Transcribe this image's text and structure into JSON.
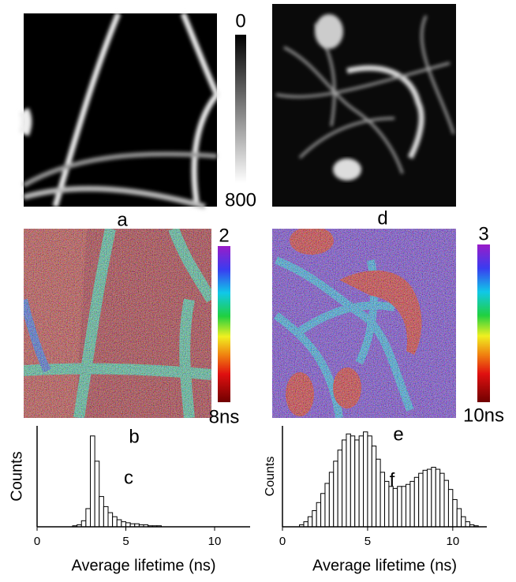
{
  "panel_labels": [
    "a",
    "d",
    "b",
    "e"
  ],
  "colorbars": [
    {
      "top": "0",
      "bottom": "800"
    },
    {
      "top": "2",
      "bottom": "8ns"
    },
    {
      "top": "3",
      "bottom": "10ns"
    }
  ],
  "chart_data": [
    {
      "type": "histogram",
      "annotation": "c",
      "xlabel": "Average lifetime (ns)",
      "ylabel": "Counts",
      "color": "#ffffff",
      "bins": [
        1.75,
        2.0,
        2.25,
        2.5,
        2.75,
        3.0,
        3.25,
        3.5,
        3.75,
        4.0,
        4.25,
        4.5,
        4.75,
        5.0,
        5.25,
        5.5,
        5.75,
        6.0,
        6.25,
        6.5,
        6.75,
        7.0,
        7.25
      ],
      "counts": [
        0,
        1,
        2,
        6,
        18,
        90,
        65,
        30,
        20,
        14,
        10,
        7,
        5,
        4,
        3,
        3,
        2,
        2,
        1,
        1,
        1,
        0
      ],
      "xlim": [
        0,
        12
      ],
      "ylim": [
        0,
        100
      ],
      "xticks": [
        0,
        5,
        10
      ]
    },
    {
      "type": "histogram",
      "annotation": "f",
      "xlabel": "Average lifetime (ns)",
      "ylabel": "Counts",
      "color": "#ffffff",
      "bins": [
        1.0,
        1.25,
        1.5,
        1.75,
        2.0,
        2.25,
        2.5,
        2.75,
        3.0,
        3.25,
        3.5,
        3.75,
        4.0,
        4.25,
        4.5,
        4.75,
        5.0,
        5.25,
        5.5,
        5.75,
        6.0,
        6.25,
        6.5,
        6.75,
        7.0,
        7.25,
        7.5,
        7.75,
        8.0,
        8.25,
        8.5,
        8.75,
        9.0,
        9.25,
        9.5,
        9.75,
        10.0,
        10.25,
        10.5,
        10.75,
        11.0,
        11.25,
        11.5
      ],
      "counts": [
        2,
        5,
        10,
        16,
        24,
        33,
        43,
        54,
        65,
        76,
        86,
        92,
        90,
        86,
        90,
        94,
        90,
        80,
        67,
        54,
        45,
        40,
        38,
        40,
        40,
        42,
        45,
        49,
        53,
        56,
        57,
        59,
        57,
        53,
        46,
        37,
        27,
        18,
        10,
        5,
        2,
        1
      ],
      "xlim": [
        0,
        12
      ],
      "ylim": [
        0,
        100
      ],
      "xticks": [
        0,
        5,
        10
      ]
    }
  ]
}
